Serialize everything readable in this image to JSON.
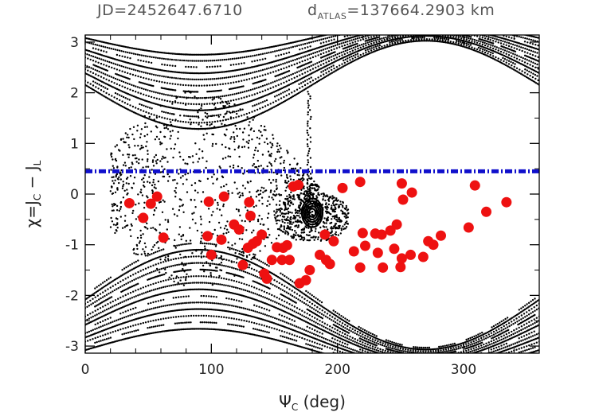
{
  "header": {
    "jd_label": "JD=2452647.6710",
    "dist_prefix": "d",
    "dist_sub": "ATLAS",
    "dist_value": "=137664.2903 km"
  },
  "chart_data": {
    "type": "scatter",
    "title": "",
    "xlabel": "Ψ_C (deg)",
    "ylabel": "χ=J_C − J_L",
    "xlim": [
      0,
      360
    ],
    "ylim": [
      -3.14,
      3.14
    ],
    "x_ticks": [
      "0",
      "100",
      "200",
      "300"
    ],
    "y_ticks": [
      "3",
      "2",
      "1",
      "0",
      "-1",
      "-2",
      "-3"
    ],
    "grid": false,
    "legend": "none",
    "reference_line": {
      "y": 0.45,
      "style": "dash-dot",
      "color": "#1010cc"
    },
    "red_points": {
      "color": "#ee1111",
      "points": [
        [
          35,
          -0.18
        ],
        [
          46,
          -0.47
        ],
        [
          52,
          -0.19
        ],
        [
          57,
          -0.05
        ],
        [
          62,
          -0.86
        ],
        [
          98,
          -0.15
        ],
        [
          97,
          -0.83
        ],
        [
          100,
          -1.2
        ],
        [
          108,
          -0.9
        ],
        [
          110,
          -0.05
        ],
        [
          118,
          -0.6
        ],
        [
          122,
          -0.7
        ],
        [
          125,
          -1.4
        ],
        [
          129,
          -1.06
        ],
        [
          130,
          -0.16
        ],
        [
          131,
          -0.43
        ],
        [
          133,
          -0.98
        ],
        [
          136,
          -0.93
        ],
        [
          140,
          -0.8
        ],
        [
          142,
          -1.57
        ],
        [
          144,
          -1.67
        ],
        [
          148,
          -1.3
        ],
        [
          152,
          -1.05
        ],
        [
          156,
          -1.3
        ],
        [
          157,
          -1.06
        ],
        [
          160,
          -1.01
        ],
        [
          162,
          -1.3
        ],
        [
          165,
          0.15
        ],
        [
          169,
          0.18
        ],
        [
          170,
          -1.76
        ],
        [
          175,
          -1.7
        ],
        [
          178,
          -1.5
        ],
        [
          186,
          -1.2
        ],
        [
          190,
          -0.8
        ],
        [
          191,
          -1.3
        ],
        [
          194,
          -1.38
        ],
        [
          197,
          -0.93
        ],
        [
          204,
          0.12
        ],
        [
          213,
          -1.13
        ],
        [
          218,
          -1.45
        ],
        [
          218,
          0.24
        ],
        [
          220,
          -0.77
        ],
        [
          222,
          -1.02
        ],
        [
          230,
          -0.78
        ],
        [
          232,
          -1.16
        ],
        [
          235,
          -0.8
        ],
        [
          236,
          -1.45
        ],
        [
          242,
          -0.72
        ],
        [
          245,
          -1.08
        ],
        [
          247,
          -0.6
        ],
        [
          250,
          -1.44
        ],
        [
          251,
          -1.27
        ],
        [
          251,
          0.21
        ],
        [
          252,
          -0.11
        ],
        [
          258,
          -1.2
        ],
        [
          259,
          0.03
        ],
        [
          268,
          -1.24
        ],
        [
          272,
          -0.93
        ],
        [
          276,
          -1.0
        ],
        [
          282,
          -0.82
        ],
        [
          304,
          -0.66
        ],
        [
          309,
          0.17
        ],
        [
          318,
          -0.35
        ],
        [
          334,
          -0.16
        ]
      ]
    }
  }
}
